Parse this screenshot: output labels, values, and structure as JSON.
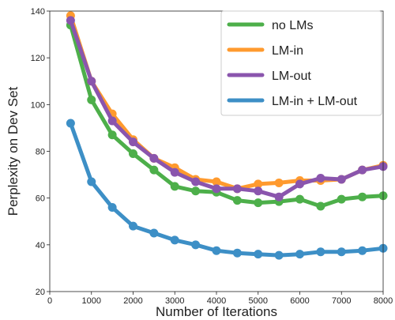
{
  "chart_data": {
    "type": "line",
    "xlabel": "Number of Iterations",
    "ylabel": "Perplexity on Dev Set",
    "xlim": [
      0,
      8000
    ],
    "ylim": [
      20,
      140
    ],
    "xticks": [
      0,
      1000,
      2000,
      3000,
      4000,
      5000,
      6000,
      7000,
      8000
    ],
    "yticks": [
      20,
      40,
      60,
      80,
      100,
      120,
      140
    ],
    "grid": false,
    "legend_position": "top-right",
    "x": [
      500,
      1000,
      1500,
      2000,
      2500,
      3000,
      3500,
      4000,
      4500,
      5000,
      5500,
      6000,
      6500,
      7000,
      7500,
      8000
    ],
    "series": [
      {
        "name": "no LMs",
        "color": "#4daf4a",
        "values": [
          134,
          102,
          87,
          79,
          72,
          65,
          63,
          62.5,
          59,
          58,
          58.5,
          59.5,
          56.5,
          59.5,
          60.5,
          61
        ]
      },
      {
        "name": "LM-in",
        "color": "#ff9a2e",
        "values": [
          138,
          110,
          96,
          85,
          77,
          73,
          68,
          67,
          64,
          66,
          66.5,
          67.5,
          67.5,
          68,
          72,
          74
        ]
      },
      {
        "name": "LM-out",
        "color": "#8a55ad",
        "values": [
          136,
          110,
          93,
          84,
          77,
          71,
          67,
          64,
          64,
          63,
          60.5,
          66,
          68.5,
          68,
          72,
          73.5
        ]
      },
      {
        "name": "LM-in + LM-out",
        "color": "#3d8fc6",
        "values": [
          92,
          67,
          56,
          48,
          45,
          42,
          40,
          37.5,
          36.5,
          36,
          35.5,
          36,
          37,
          37,
          37.5,
          38.5
        ]
      }
    ]
  }
}
